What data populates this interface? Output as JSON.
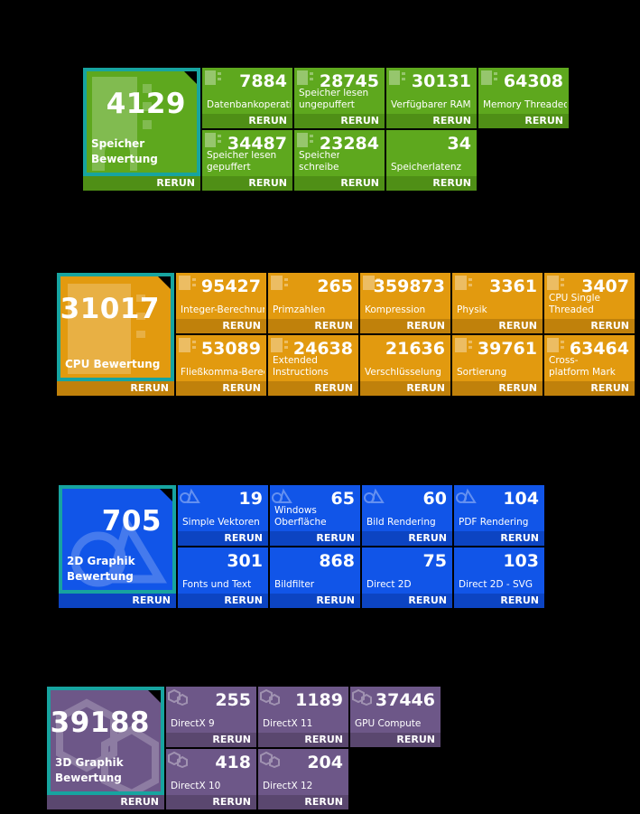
{
  "rerun_label": "RERUN",
  "memory": {
    "score": "4129",
    "label": "Speicher Bewertung",
    "tiles": [
      {
        "value": "7884",
        "name": "Datenbankoperationen"
      },
      {
        "value": "28745",
        "name": "Speicher lesen ungepuffert"
      },
      {
        "value": "30131",
        "name": "Verfügbarer RAM"
      },
      {
        "value": "64308",
        "name": "Memory Threaded"
      },
      {
        "value": "34487",
        "name": "Speicher lesen gepuffert"
      },
      {
        "value": "23284",
        "name": "Speicher schreiben"
      },
      {
        "value": "34",
        "name": "Speicherlatenz"
      }
    ]
  },
  "cpu": {
    "score": "31017",
    "label": "CPU Bewertung",
    "tiles": [
      {
        "value": "95427",
        "name": "Integer-Berechnungen"
      },
      {
        "value": "265",
        "name": "Primzahlen"
      },
      {
        "value": "359873",
        "name": "Kompression"
      },
      {
        "value": "3361",
        "name": "Physik"
      },
      {
        "value": "3407",
        "name": "CPU Single Threaded"
      },
      {
        "value": "53089",
        "name": "Fließkomma-Berechnungen"
      },
      {
        "value": "24638",
        "name": "Extended Instructions (SSE)"
      },
      {
        "value": "21636",
        "name": "Verschlüsselung"
      },
      {
        "value": "39761",
        "name": "Sortierung"
      },
      {
        "value": "63464",
        "name": "Cross-platform Mark"
      }
    ]
  },
  "graphics2d": {
    "score": "705",
    "label_line1": "2D Graphik",
    "label_line2": "Bewertung",
    "tiles": [
      {
        "value": "19",
        "name": "Simple Vektoren"
      },
      {
        "value": "65",
        "name": "Windows Oberfläche"
      },
      {
        "value": "60",
        "name": "Bild Rendering"
      },
      {
        "value": "104",
        "name": "PDF Rendering"
      },
      {
        "value": "301",
        "name": "Fonts und Text"
      },
      {
        "value": "868",
        "name": "Bildfilter"
      },
      {
        "value": "75",
        "name": "Direct 2D"
      },
      {
        "value": "103",
        "name": "Direct 2D - SVG"
      }
    ]
  },
  "graphics3d": {
    "score": "39188",
    "label_line1": "3D Graphik",
    "label_line2": "Bewertung",
    "tiles": [
      {
        "value": "255",
        "name": "DirectX 9"
      },
      {
        "value": "1189",
        "name": "DirectX 11"
      },
      {
        "value": "37446",
        "name": "GPU Compute"
      },
      {
        "value": "418",
        "name": "DirectX 10"
      },
      {
        "value": "204",
        "name": "DirectX 12"
      }
    ]
  },
  "icons": {
    "memory": "ram-chip-icon",
    "cpu": "cpu-chip-icon",
    "graphics2d": "shapes-2d-icon",
    "graphics3d": "cubes-3d-icon"
  }
}
